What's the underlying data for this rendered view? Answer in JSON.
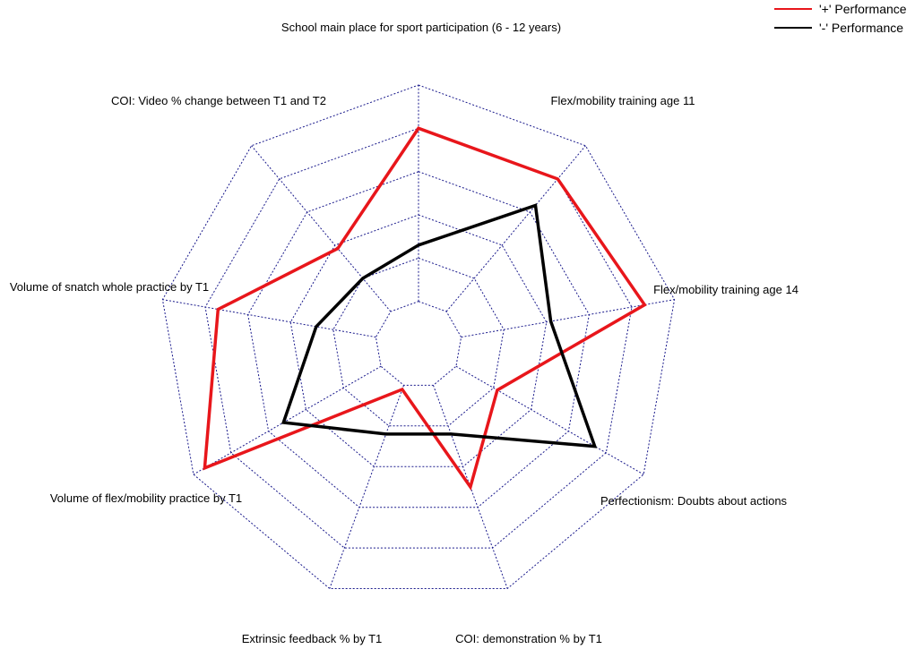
{
  "chart_data": {
    "type": "radar",
    "axes": [
      "School main place for sport participation (6 - 12 years)",
      "Flex/mobility training age 11",
      "Flex/mobility training age 14",
      "Perfectionism: Doubts about actions",
      "COI: demonstration % by T1",
      "Extrinsic feedback % by T1",
      "Volume of flex/mobility practice by T1",
      "Volume of snatch whole practice by T1",
      "COI: Video % change between T1 and T2"
    ],
    "rlim": [
      0,
      6
    ],
    "grid_rings": [
      1,
      2,
      3,
      4,
      5,
      6
    ],
    "grid_style": "dotted",
    "legend_position": "top-right",
    "series": [
      {
        "name": "'+' Performance",
        "color": "#e8161b",
        "values": [
          5,
          5,
          5.3,
          2.1,
          3.5,
          1.1,
          5.7,
          4.7,
          2.9
        ]
      },
      {
        "name": "'-' Performance",
        "color": "#000000",
        "values": [
          2.3,
          4.2,
          3.1,
          4.7,
          2.2,
          2.2,
          3.6,
          2.4,
          2.0
        ]
      }
    ]
  },
  "colors": {
    "grid": "#1a1a8c",
    "background": "#ffffff"
  }
}
